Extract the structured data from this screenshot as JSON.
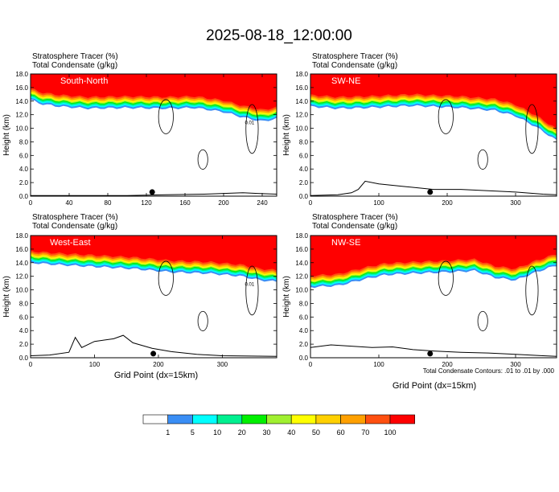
{
  "figure": {
    "title": "2025-08-18_12:00:00",
    "footnote": "Total Condensate Contours: .01 to .01 by .000",
    "xlabel": "Grid Point (dx=15km)"
  },
  "colorbar": {
    "colors": [
      "#ffffff",
      "#3a8ef5",
      "#00ffff",
      "#00f090",
      "#00f000",
      "#a0f030",
      "#ffff00",
      "#ffd000",
      "#ffa000",
      "#ff5010",
      "#ff0000"
    ],
    "labels": [
      "1",
      "5",
      "10",
      "20",
      "30",
      "40",
      "50",
      "60",
      "70",
      "100"
    ]
  },
  "chart_data": [
    {
      "type": "heatmap",
      "name": "South-North",
      "label_left1": "Stratosphere Tracer   (%)",
      "label_left2": "Total Condensate   (g/kg)",
      "ylabel": "Height (km)",
      "xlim": [
        0,
        255
      ],
      "ylim": [
        0,
        18
      ],
      "xticks": [
        0,
        40,
        80,
        120,
        160,
        200,
        240
      ],
      "yticks": [
        "0.0",
        "2.0",
        "4.0",
        "6.0",
        "8.0",
        "10.0",
        "12.0",
        "14.0",
        "16.0",
        "18.0"
      ],
      "tracer_top_boundary": [
        [
          0,
          15.2
        ],
        [
          10,
          14.6
        ],
        [
          30,
          14.2
        ],
        [
          60,
          13.9
        ],
        [
          100,
          14.0
        ],
        [
          140,
          13.9
        ],
        [
          170,
          14.0
        ],
        [
          200,
          13.4
        ],
        [
          220,
          12.6
        ],
        [
          240,
          12.0
        ],
        [
          255,
          12.4
        ]
      ],
      "terrain": [
        [
          0,
          0.1
        ],
        [
          100,
          0.1
        ],
        [
          140,
          0.2
        ],
        [
          180,
          0.3
        ],
        [
          200,
          0.4
        ],
        [
          220,
          0.5
        ],
        [
          235,
          0.4
        ],
        [
          255,
          0.3
        ]
      ],
      "marker_x": 126,
      "contour_label": "0.01"
    },
    {
      "type": "heatmap",
      "name": "SW-NE",
      "label_left1": "Stratosphere Tracer   (%)",
      "label_left2": "Total Condensate   (g/kg)",
      "ylabel": "Height (km)",
      "xlim": [
        0,
        360
      ],
      "ylim": [
        0,
        18
      ],
      "xticks": [
        0,
        100,
        200,
        300
      ],
      "yticks": [
        "0.0",
        "2.0",
        "4.0",
        "6.0",
        "8.0",
        "10.0",
        "12.0",
        "14.0",
        "16.0",
        "18.0"
      ],
      "tracer_top_boundary": [
        [
          0,
          14.2
        ],
        [
          40,
          13.9
        ],
        [
          80,
          14.0
        ],
        [
          150,
          14.3
        ],
        [
          220,
          14.0
        ],
        [
          270,
          13.6
        ],
        [
          300,
          12.8
        ],
        [
          330,
          11.2
        ],
        [
          360,
          9.2
        ]
      ],
      "terrain": [
        [
          0,
          0.1
        ],
        [
          40,
          0.2
        ],
        [
          60,
          0.5
        ],
        [
          70,
          1.0
        ],
        [
          80,
          2.2
        ],
        [
          100,
          1.8
        ],
        [
          140,
          1.4
        ],
        [
          180,
          1.0
        ],
        [
          220,
          1.0
        ],
        [
          260,
          0.8
        ],
        [
          300,
          0.6
        ],
        [
          340,
          0.3
        ],
        [
          360,
          0.2
        ]
      ],
      "marker_x": 175
    },
    {
      "type": "heatmap",
      "name": "West-East",
      "label_left1": "Stratosphere Tracer   (%)",
      "label_left2": "Total Condensate   (g/kg)",
      "ylabel": "Height (km)",
      "xlim": [
        0,
        385
      ],
      "ylim": [
        0,
        18
      ],
      "xticks": [
        0,
        100,
        200,
        300
      ],
      "yticks": [
        "0.0",
        "2.0",
        "4.0",
        "6.0",
        "8.0",
        "10.0",
        "12.0",
        "14.0",
        "16.0",
        "18.0"
      ],
      "tracer_top_boundary": [
        [
          0,
          15.0
        ],
        [
          40,
          14.7
        ],
        [
          100,
          14.4
        ],
        [
          160,
          14.1
        ],
        [
          220,
          13.6
        ],
        [
          280,
          13.4
        ],
        [
          330,
          13.0
        ],
        [
          360,
          12.4
        ],
        [
          385,
          12.2
        ]
      ],
      "terrain": [
        [
          0,
          0.3
        ],
        [
          30,
          0.4
        ],
        [
          60,
          0.8
        ],
        [
          70,
          3.0
        ],
        [
          80,
          1.5
        ],
        [
          100,
          2.4
        ],
        [
          130,
          2.8
        ],
        [
          145,
          3.3
        ],
        [
          160,
          2.2
        ],
        [
          190,
          1.4
        ],
        [
          220,
          0.9
        ],
        [
          260,
          0.5
        ],
        [
          300,
          0.3
        ],
        [
          385,
          0.2
        ]
      ],
      "marker_x": 192,
      "contour_label": "0.01"
    },
    {
      "type": "heatmap",
      "name": "NW-SE",
      "label_left1": "Stratosphere Tracer   (%)",
      "label_left2": "Total Condensate   (g/kg)",
      "ylabel": "Height (km)",
      "xlim": [
        0,
        360
      ],
      "ylim": [
        0,
        18
      ],
      "xticks": [
        0,
        100,
        200,
        300
      ],
      "yticks": [
        "0.0",
        "2.0",
        "4.0",
        "6.0",
        "8.0",
        "10.0",
        "12.0",
        "14.0",
        "16.0",
        "18.0"
      ],
      "tracer_top_boundary": [
        [
          0,
          11.4
        ],
        [
          40,
          11.6
        ],
        [
          80,
          12.6
        ],
        [
          110,
          13.2
        ],
        [
          150,
          13.4
        ],
        [
          200,
          13.6
        ],
        [
          240,
          13.8
        ],
        [
          270,
          12.8
        ],
        [
          300,
          12.4
        ],
        [
          330,
          13.6
        ],
        [
          360,
          14.6
        ]
      ],
      "terrain": [
        [
          0,
          1.5
        ],
        [
          30,
          1.9
        ],
        [
          60,
          1.7
        ],
        [
          90,
          1.5
        ],
        [
          120,
          1.6
        ],
        [
          150,
          1.2
        ],
        [
          180,
          1.0
        ],
        [
          220,
          0.8
        ],
        [
          260,
          0.7
        ],
        [
          300,
          0.5
        ],
        [
          340,
          0.3
        ],
        [
          360,
          0.2
        ]
      ],
      "marker_x": 175
    }
  ]
}
